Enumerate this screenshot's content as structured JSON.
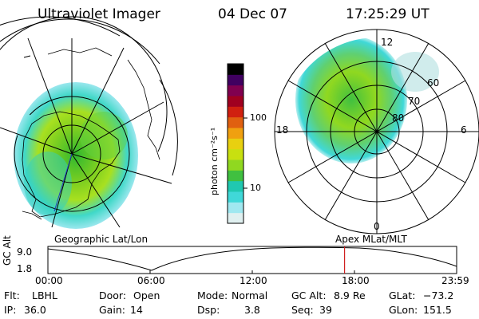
{
  "header": {
    "instrument": "Ultraviolet Imager",
    "date": "04 Dec 07",
    "time": "17:25:29 UT"
  },
  "left_map": {
    "label": "Geographic Lat/Lon"
  },
  "right_map": {
    "label": "Apex MLat/MLT",
    "mlt_top": "12",
    "mlt_left": "18",
    "mlt_right": "6",
    "mlt_bottom": "0",
    "lat_rings": [
      "60",
      "70",
      "80"
    ]
  },
  "colorbar": {
    "unit_label": "photon cm⁻²s⁻¹",
    "ticks": [
      "100",
      "10"
    ],
    "colors": [
      "#e0f0f0",
      "#a0e8f0",
      "#40d8d8",
      "#20c8b0",
      "#40c040",
      "#90d820",
      "#c8e010",
      "#e8d010",
      "#f0a010",
      "#e06010",
      "#d02010",
      "#a00020",
      "#800050",
      "#400060",
      "#000000"
    ]
  },
  "timeline": {
    "ylabel": "GC Alt",
    "ytick_top": "9.0",
    "ytick_bottom": "1.8",
    "xticks": [
      "00:00",
      "06:00",
      "12:00",
      "18:00",
      "23:59"
    ],
    "current_marker_hour": 17.42,
    "current_marker_color": "#d02020"
  },
  "info": {
    "flt_label": "Flt:",
    "flt_value": "LBHL",
    "door_label": "Door:",
    "door_value": "Open",
    "mode_label": "Mode:",
    "mode_value": "Normal",
    "gcalt_label": "GC Alt:",
    "gcalt_value": "8.9 Re",
    "glat_label": "GLat:",
    "glat_value": "−73.2",
    "ip_label": "IP:",
    "ip_value": "36.0",
    "gain_label": "Gain:",
    "gain_value": "14",
    "dsp_label": "Dsp:",
    "dsp_value": "3.8",
    "seq_label": "Seq:",
    "seq_value": "39",
    "glon_label": "GLon:",
    "glon_value": "151.5"
  }
}
